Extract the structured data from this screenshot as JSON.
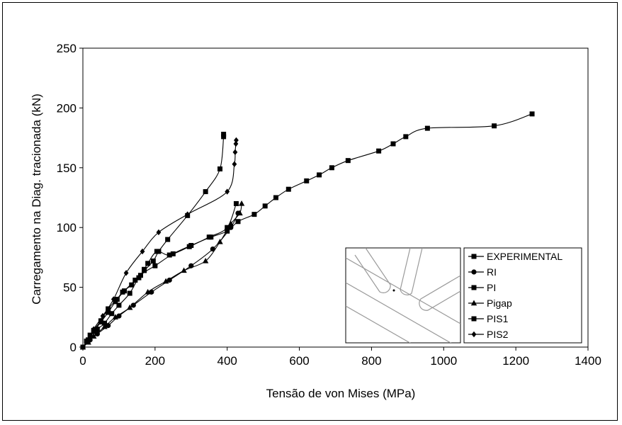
{
  "chart_data": {
    "type": "line",
    "title": "",
    "xlabel": "Tensão de von Mises (MPa)",
    "ylabel": "Carregamento na Diag. tracionada (kN)",
    "xlim": [
      0,
      1400
    ],
    "ylim": [
      0,
      250
    ],
    "x_ticks": [
      0,
      200,
      400,
      600,
      800,
      1000,
      1200,
      1400
    ],
    "y_ticks": [
      0,
      50,
      100,
      150,
      200,
      250
    ],
    "x_tick_labels": [
      "0",
      "200",
      "400",
      "600",
      "800",
      "1000",
      "1200",
      "1400"
    ],
    "y_tick_labels": [
      "0",
      "50",
      "100",
      "150",
      "200",
      "250"
    ],
    "grid": false,
    "legend_position": "bottom-right",
    "inset": "joint detail sketch",
    "series": [
      {
        "name": "EXPERIMENTAL",
        "marker": "square",
        "x": [
          0,
          10,
          20,
          40,
          60,
          80,
          100,
          130,
          160,
          200,
          250,
          300,
          355,
          400,
          430,
          475,
          505,
          535,
          570,
          620,
          655,
          690,
          735,
          820,
          860,
          895,
          955,
          1140,
          1245
        ],
        "y": [
          0,
          5,
          10,
          15,
          20,
          28,
          35,
          45,
          60,
          68,
          78,
          85,
          92,
          97,
          105,
          111,
          118,
          125,
          132,
          139,
          144,
          150,
          156,
          164,
          170,
          176,
          183,
          185,
          195
        ]
      },
      {
        "name": "RI",
        "marker": "circle",
        "x": [
          0,
          20,
          40,
          70,
          100,
          140,
          190,
          240,
          300,
          360,
          410,
          430
        ],
        "y": [
          0,
          6,
          11,
          18,
          26,
          35,
          46,
          56,
          68,
          82,
          100,
          112
        ]
      },
      {
        "name": "PI",
        "marker": "square",
        "x": [
          0,
          15,
          30,
          50,
          70,
          90,
          110,
          135,
          155,
          170,
          180,
          205,
          240,
          295,
          350,
          400,
          425
        ],
        "y": [
          0,
          6,
          13,
          21,
          29,
          38,
          46,
          52,
          58,
          65,
          70,
          80,
          77,
          84,
          92,
          100,
          120
        ]
      },
      {
        "name": "Pigap",
        "marker": "triangle",
        "x": [
          0,
          15,
          30,
          60,
          90,
          130,
          180,
          230,
          280,
          340,
          380,
          410,
          435,
          440
        ],
        "y": [
          0,
          4,
          9,
          17,
          25,
          33,
          46,
          55,
          64,
          72,
          88,
          103,
          112,
          120
        ]
      },
      {
        "name": "PIS1",
        "marker": "square",
        "x": [
          0,
          15,
          30,
          50,
          70,
          95,
          115,
          145,
          170,
          195,
          210,
          235,
          290,
          340,
          380,
          390,
          390
        ],
        "y": [
          0,
          6,
          14,
          22,
          32,
          40,
          47,
          56,
          64,
          72,
          80,
          90,
          110,
          130,
          149,
          176,
          178
        ]
      },
      {
        "name": "PIS2",
        "marker": "diamond",
        "x": [
          0,
          15,
          30,
          55,
          85,
          120,
          165,
          210,
          290,
          400,
          420,
          422,
          424,
          425
        ],
        "y": [
          0,
          6,
          15,
          26,
          40,
          62,
          80,
          96,
          111,
          130,
          153,
          163,
          170,
          173
        ]
      }
    ]
  }
}
